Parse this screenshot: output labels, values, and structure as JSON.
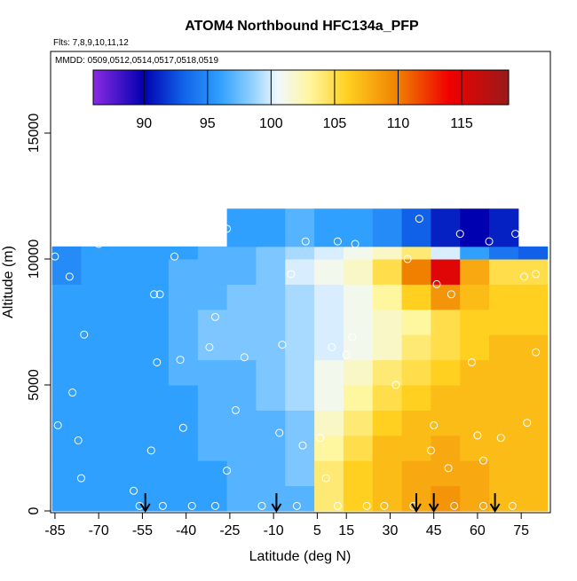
{
  "chart_data": {
    "type": "heatmap",
    "title": "ATOM4 Northbound HFC134a_PFP",
    "subtitle": "Flts: 7,8,9,10,11,12",
    "annotation": "MMDD: 0509,0512,0514,0517,0518,0519",
    "xlabel": "Latitude (deg N)",
    "ylabel": "Altitude (m)",
    "xlim": [
      -86.5,
      85
    ],
    "ylim": [
      -70,
      18240
    ],
    "xticks": [
      -85,
      -70,
      -55,
      -40,
      -25,
      -10,
      5,
      15,
      30,
      45,
      60,
      75
    ],
    "yticks": [
      0,
      5000,
      10000,
      15000
    ],
    "x_edges": [
      -86,
      -76,
      -66,
      -56,
      -46,
      -36,
      -26,
      -16,
      -6,
      4,
      14,
      24,
      34,
      44,
      54,
      64,
      74,
      84
    ],
    "y_edges": [
      0,
      1000,
      2000,
      3000,
      4000,
      5000,
      6000,
      7000,
      8000,
      9000,
      10000,
      10500,
      12000
    ],
    "z": [
      [
        96,
        96,
        96,
        96,
        96,
        96,
        97,
        97,
        97,
        104,
        106,
        107,
        108,
        109,
        108,
        107,
        107
      ],
      [
        96,
        96,
        96,
        96,
        96,
        96,
        97,
        97,
        98,
        104,
        106,
        107,
        108,
        108,
        108,
        107,
        107
      ],
      [
        96,
        96,
        96,
        96,
        96,
        97,
        97,
        97,
        98,
        103,
        105,
        107,
        107,
        108,
        107,
        107,
        107
      ],
      [
        96,
        96,
        96,
        96,
        96,
        97,
        97,
        97,
        98,
        102,
        104,
        106,
        107,
        107,
        107,
        107,
        107
      ],
      [
        96,
        96,
        96,
        96,
        96,
        97,
        97,
        98,
        99,
        101,
        103,
        105,
        106,
        107,
        107,
        107,
        107
      ],
      [
        96,
        96,
        96,
        96,
        97,
        97,
        97,
        98,
        99,
        101,
        102,
        104,
        105,
        106,
        107,
        107,
        107
      ],
      [
        96,
        96,
        96,
        96,
        97,
        98,
        98,
        98,
        99,
        100,
        101,
        102,
        104,
        105,
        106,
        107,
        107
      ],
      [
        96,
        96,
        96,
        96,
        97,
        98,
        98,
        98,
        99,
        100,
        101,
        102,
        103,
        105,
        106,
        106,
        106
      ],
      [
        96,
        96,
        96,
        96,
        97,
        97,
        98,
        98,
        99,
        100,
        101,
        103,
        106,
        109,
        107,
        106,
        106
      ],
      [
        95,
        96,
        96,
        96,
        97,
        97,
        97,
        98,
        100,
        101,
        102,
        105,
        110,
        115,
        108,
        105,
        105
      ],
      [
        95,
        96,
        96,
        96,
        96,
        97,
        97,
        98,
        99,
        100,
        101,
        102,
        104,
        100,
        96,
        94,
        93
      ],
      [
        null,
        null,
        null,
        null,
        null,
        null,
        96,
        96,
        97,
        96,
        96,
        95,
        93,
        91,
        90,
        91,
        null
      ]
    ],
    "colorbar": {
      "lim": [
        86,
        118.7
      ],
      "ticks": [
        90,
        95,
        100,
        105,
        110,
        115
      ],
      "stops": [
        [
          86,
          "#8a2be2"
        ],
        [
          90,
          "#0000b0"
        ],
        [
          93,
          "#1060e8"
        ],
        [
          96,
          "#30a0ff"
        ],
        [
          98.5,
          "#90d0ff"
        ],
        [
          100.5,
          "#f0f8ff"
        ],
        [
          103,
          "#fff6a0"
        ],
        [
          106,
          "#ffd020"
        ],
        [
          110,
          "#f08000"
        ],
        [
          114,
          "#f00000"
        ],
        [
          118.7,
          "#9a1a1a"
        ]
      ]
    },
    "points": {
      "x": [
        -85,
        -84,
        -80,
        -79,
        -77,
        -76,
        -75,
        -70,
        -58,
        -56,
        -52,
        -51,
        -49,
        -50,
        -44,
        -42,
        -41,
        -38,
        -32,
        -30,
        -26,
        -26,
        -23,
        -20,
        -8,
        -7,
        -4,
        0,
        1,
        6,
        8,
        10,
        12,
        15,
        17,
        18,
        22,
        32,
        36,
        40,
        44,
        45,
        46,
        50,
        51,
        54,
        58,
        60,
        62,
        64,
        68,
        73,
        76,
        77,
        80,
        80,
        -48,
        -30,
        -14,
        -2,
        12,
        28,
        38,
        52,
        62,
        72
      ],
      "y": [
        10100,
        3400,
        9300,
        4700,
        2800,
        1300,
        7000,
        10600,
        800,
        200,
        2400,
        8600,
        8600,
        5900,
        10100,
        6000,
        3300,
        200,
        6500,
        7700,
        1600,
        11200,
        4000,
        6100,
        3100,
        6600,
        9400,
        2600,
        10700,
        2900,
        1300,
        6500,
        10700,
        6200,
        6900,
        10600,
        200,
        5000,
        10000,
        11600,
        2400,
        3400,
        9000,
        1700,
        8600,
        11000,
        5900,
        3000,
        2000,
        10700,
        2900,
        11000,
        9300,
        3500,
        9400,
        6300,
        200,
        200,
        200,
        200,
        200,
        200,
        200,
        200,
        200,
        200
      ]
    },
    "arrows": [
      -54,
      -9,
      39,
      45,
      66
    ]
  }
}
